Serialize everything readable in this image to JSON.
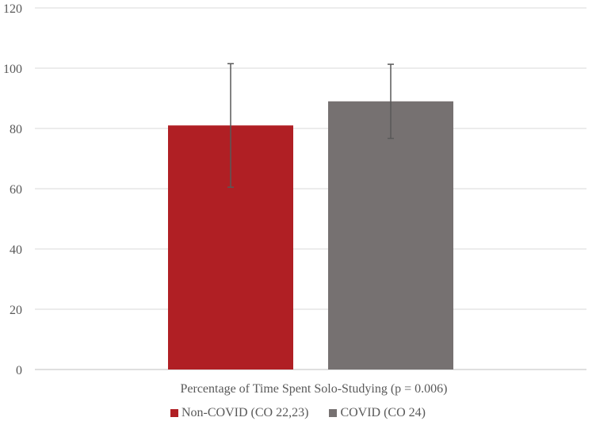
{
  "chart_data": {
    "type": "bar",
    "categories": [
      "Percentage of Time Spent Solo-Studying (p = 0.006)"
    ],
    "series": [
      {
        "name": "Non-COVID (CO 22,23)",
        "values": [
          81
        ],
        "error": [
          20.5
        ],
        "color": "#b01f24"
      },
      {
        "name": "COVID (CO 24)",
        "values": [
          89
        ],
        "error": [
          12.3
        ],
        "color": "#767171"
      }
    ],
    "ylim": [
      0,
      120
    ],
    "yticks": [
      0,
      20,
      40,
      60,
      80,
      100,
      120
    ],
    "grid": true,
    "legend": "bottom",
    "colors": {
      "grid": "#d9d9d9",
      "axis": "#bfbfbf",
      "error_bar": "#595959"
    }
  }
}
